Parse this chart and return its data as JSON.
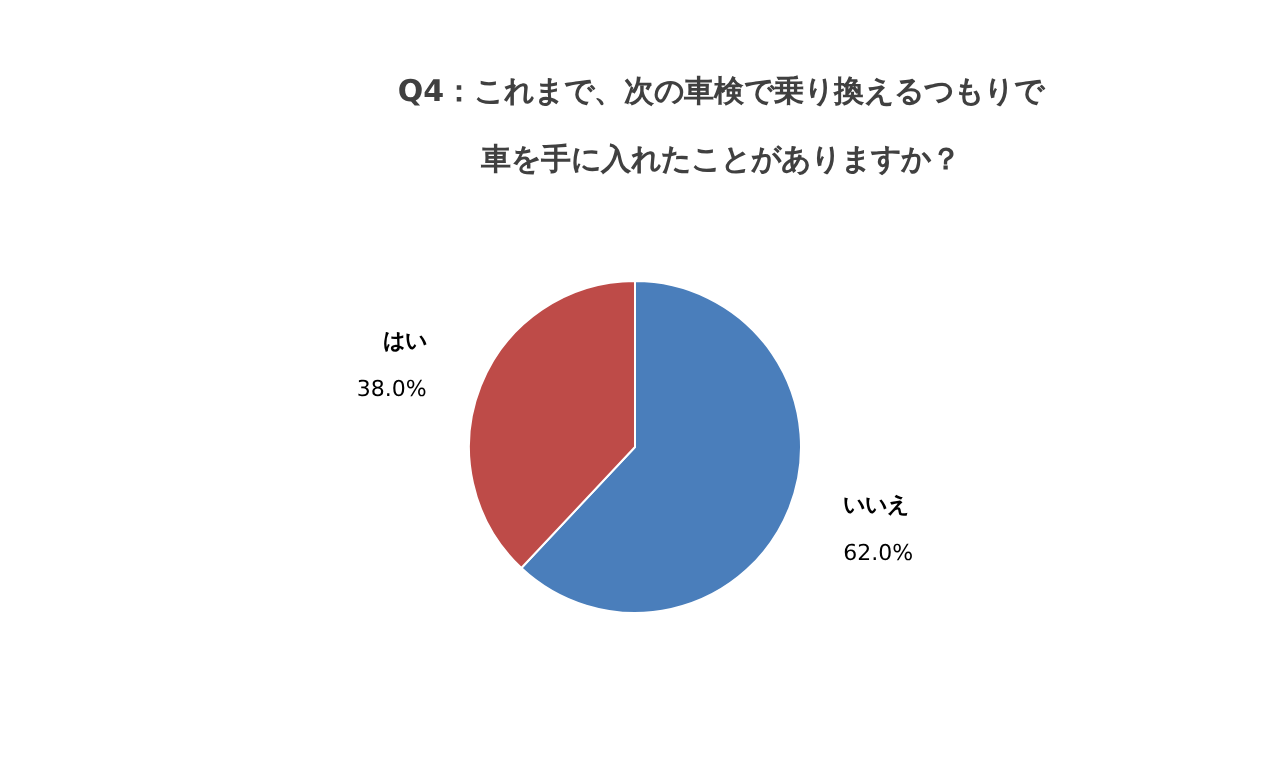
{
  "chart_data": {
    "type": "pie",
    "title": "Q4：これまで、次の車検で乗り換えるつもりで車を手に入れたことがありますか？",
    "categories": [
      "いいえ",
      "はい"
    ],
    "values": [
      62.0,
      38.0
    ],
    "colors": [
      "#4a7ebb",
      "#be4b48"
    ],
    "value_labels": [
      "62.0%",
      "38.0%"
    ]
  }
}
